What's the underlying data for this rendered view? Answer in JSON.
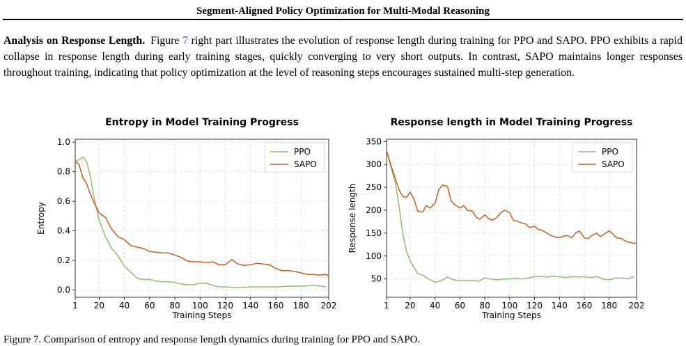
{
  "header": {
    "title": "Segment-Aligned Policy Optimization for Multi-Modal Reasoning"
  },
  "paragraph": {
    "lead": "Analysis on Response Length.",
    "pre_ref": "Figure ",
    "ref": "7",
    "body": " right part illustrates the evolution of response length during training for PPO and SAPO. PPO exhibits a rapid collapse in response length during early training stages, quickly converging to very short outputs. In contrast, SAPO maintains longer responses throughout training, indicating that policy optimization at the level of reasoning steps encourages sustained multi-step generation."
  },
  "colors": {
    "ppo": "#8fbc78",
    "sapo": "#c0602a",
    "ref_link": "#3a66b0"
  },
  "chart_data": [
    {
      "type": "line",
      "title": "Entropy in Model Training Progress",
      "xlabel": "Training Steps",
      "ylabel": "Entropy",
      "xlim": [
        1,
        202
      ],
      "ylim": [
        -0.05,
        1.02
      ],
      "xticks": [
        1,
        20,
        40,
        60,
        80,
        100,
        120,
        140,
        160,
        180,
        202
      ],
      "yticks": [
        0.0,
        0.2,
        0.4,
        0.6,
        0.8,
        1.0
      ],
      "ytick_labels": [
        "0.0",
        "0.2",
        "0.4",
        "0.6",
        "0.8",
        "1.0"
      ],
      "grid": true,
      "legend": "top-right",
      "series": [
        {
          "name": "PPO",
          "x": [
            1,
            4,
            7,
            10,
            13,
            16,
            20,
            25,
            30,
            35,
            40,
            45,
            50,
            55,
            60,
            65,
            70,
            75,
            80,
            85,
            90,
            95,
            100,
            105,
            110,
            115,
            120,
            130,
            140,
            150,
            160,
            170,
            180,
            190,
            196,
            200
          ],
          "y": [
            0.87,
            0.88,
            0.9,
            0.87,
            0.77,
            0.62,
            0.47,
            0.36,
            0.28,
            0.23,
            0.16,
            0.12,
            0.08,
            0.07,
            0.07,
            0.06,
            0.055,
            0.055,
            0.05,
            0.04,
            0.035,
            0.035,
            0.045,
            0.045,
            0.03,
            0.02,
            0.02,
            0.015,
            0.02,
            0.02,
            0.02,
            0.025,
            0.025,
            0.03,
            0.025,
            0.02
          ]
        },
        {
          "name": "SAPO",
          "x": [
            1,
            4,
            7,
            10,
            13,
            16,
            20,
            25,
            30,
            35,
            40,
            45,
            50,
            55,
            60,
            65,
            70,
            75,
            80,
            85,
            90,
            95,
            100,
            105,
            110,
            115,
            120,
            125,
            130,
            135,
            140,
            145,
            150,
            155,
            160,
            165,
            170,
            175,
            180,
            185,
            190,
            195,
            200,
            202
          ],
          "y": [
            0.87,
            0.85,
            0.76,
            0.72,
            0.65,
            0.59,
            0.52,
            0.49,
            0.41,
            0.36,
            0.34,
            0.3,
            0.29,
            0.28,
            0.26,
            0.255,
            0.25,
            0.25,
            0.235,
            0.22,
            0.195,
            0.19,
            0.19,
            0.185,
            0.19,
            0.17,
            0.17,
            0.205,
            0.175,
            0.165,
            0.17,
            0.18,
            0.175,
            0.17,
            0.145,
            0.13,
            0.13,
            0.125,
            0.115,
            0.105,
            0.105,
            0.1,
            0.105,
            0.09
          ]
        }
      ]
    },
    {
      "type": "line",
      "title": "Response length in Model Training Progress",
      "xlabel": "Training Steps",
      "ylabel": "Response length",
      "xlim": [
        1,
        202
      ],
      "ylim": [
        10,
        355
      ],
      "xticks": [
        1,
        20,
        40,
        60,
        80,
        100,
        120,
        140,
        160,
        180,
        202
      ],
      "yticks": [
        50,
        100,
        150,
        200,
        250,
        300,
        350
      ],
      "ytick_labels": [
        "50",
        "100",
        "150",
        "200",
        "250",
        "300",
        "350"
      ],
      "grid": true,
      "legend": "top-right",
      "series": [
        {
          "name": "PPO",
          "x": [
            1,
            5,
            8,
            11,
            14,
            17,
            20,
            23,
            26,
            30,
            35,
            40,
            45,
            50,
            55,
            60,
            65,
            70,
            75,
            80,
            85,
            90,
            95,
            100,
            105,
            110,
            115,
            120,
            125,
            130,
            135,
            140,
            145,
            150,
            155,
            160,
            165,
            170,
            175,
            180,
            185,
            190,
            195,
            200
          ],
          "y": [
            330,
            290,
            260,
            210,
            150,
            110,
            90,
            75,
            62,
            58,
            50,
            43,
            46,
            54,
            48,
            46,
            46,
            47,
            45,
            52,
            50,
            48,
            50,
            50,
            52,
            50,
            52,
            55,
            56,
            54,
            56,
            55,
            53,
            55,
            54,
            55,
            53,
            55,
            50,
            48,
            52,
            52,
            51,
            55
          ]
        },
        {
          "name": "SAPO",
          "x": [
            1,
            5,
            8,
            11,
            14,
            17,
            20,
            23,
            26,
            30,
            33,
            36,
            40,
            43,
            46,
            50,
            53,
            56,
            60,
            63,
            66,
            70,
            73,
            76,
            80,
            83,
            86,
            90,
            93,
            96,
            100,
            103,
            106,
            110,
            113,
            116,
            120,
            123,
            126,
            130,
            133,
            136,
            140,
            143,
            146,
            150,
            153,
            156,
            160,
            163,
            166,
            170,
            173,
            176,
            180,
            183,
            186,
            190,
            193,
            196,
            200,
            202
          ],
          "y": [
            330,
            295,
            270,
            245,
            230,
            228,
            240,
            225,
            198,
            196,
            210,
            205,
            215,
            245,
            255,
            252,
            220,
            212,
            205,
            210,
            200,
            198,
            185,
            180,
            190,
            182,
            178,
            185,
            195,
            200,
            195,
            178,
            176,
            172,
            170,
            162,
            165,
            158,
            156,
            150,
            145,
            142,
            140,
            143,
            145,
            140,
            150,
            155,
            140,
            138,
            145,
            150,
            142,
            148,
            155,
            148,
            140,
            138,
            133,
            130,
            128,
            128
          ]
        }
      ]
    }
  ],
  "caption": {
    "text": "Figure 7. Comparison of entropy and response length dynamics during training for PPO and SAPO."
  }
}
